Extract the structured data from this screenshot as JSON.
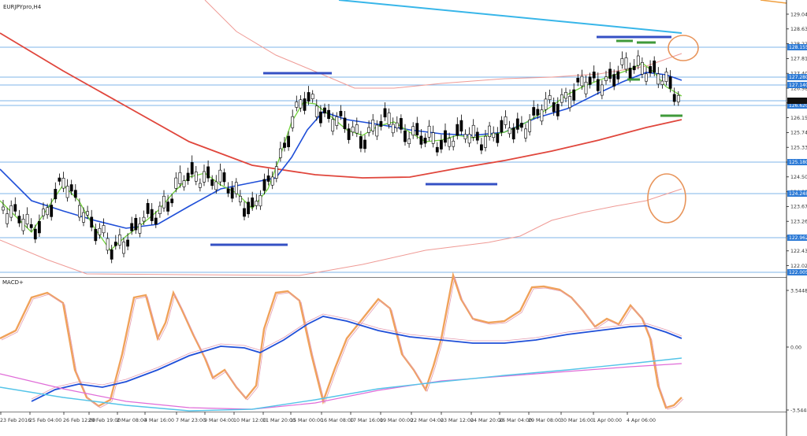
{
  "window": {
    "symbol_label": "EURJPYpro,H4",
    "indicator_label": "MACD+"
  },
  "colors": {
    "level_line": "#7fb6ea",
    "level_box": "#2e7bd6",
    "ma_red": "#e0463c",
    "ma_pink": "#ef9a95",
    "ma_blue": "#1f4fd8",
    "ma_green": "#73d23d",
    "trend_cyan": "#38b6e9",
    "marker_blue": "#3450c4",
    "marker_green": "#3f9a3a",
    "circle": "#e8945a",
    "macd_orange": "#f0a25a",
    "macd_pink": "#e39ab0",
    "macd_magenta": "#e06cd8",
    "macd_cyan": "#54c4e8"
  },
  "price_axis": {
    "ticks": [
      "129.042",
      "128.632",
      "128.222",
      "127.812",
      "127.402",
      "126.982",
      "126.572",
      "126.152",
      "125.742",
      "125.332",
      "124.912",
      "124.502",
      "124.092",
      "123.672",
      "123.262",
      "122.852",
      "122.432",
      "122.022"
    ],
    "level_labels": [
      "128.155",
      "127.280",
      "127.140",
      "126.760",
      "126.620",
      "125.180",
      "124.248",
      "122.962",
      "122.005"
    ]
  },
  "macd_axis": {
    "ticks": [
      "3.5448",
      "0.00",
      "-3.5448"
    ]
  },
  "time_axis": {
    "labels": [
      "23 Feb 2016",
      "25 Feb 04:00",
      "26 Feb 12:00",
      "29 Feb 19:00",
      "2 Mar 08:00",
      "4 Mar 16:00",
      "7 Mar 23:00",
      "9 Mar 04:00",
      "10 Mar 12:00",
      "11 Mar 20:00",
      "15 Mar 00:00",
      "16 Mar 08:00",
      "17 Mar 16:00",
      "19 Mar 00:00",
      "22 Mar 04:00",
      "23 Mar 12:00",
      "24 Mar 20:00",
      "26 Mar 04:00",
      "29 Mar 08:00",
      "30 Mar 16:00",
      "1 Apr 00:00",
      "4 Apr 06:00"
    ]
  }
}
